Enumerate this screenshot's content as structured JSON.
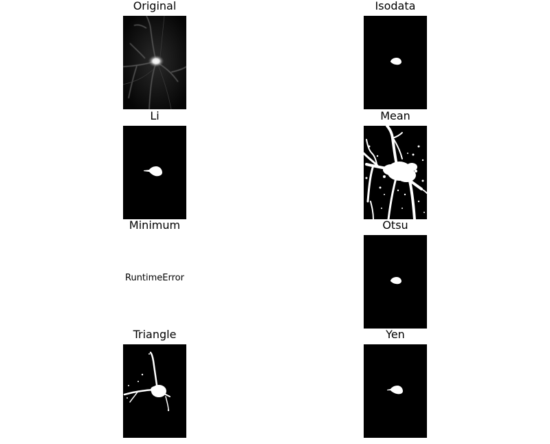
{
  "panels": {
    "original": {
      "title": "Original"
    },
    "isodata": {
      "title": "Isodata"
    },
    "li": {
      "title": "Li"
    },
    "mean": {
      "title": "Mean"
    },
    "minimum": {
      "title": "Minimum",
      "error": "RuntimeError"
    },
    "otsu": {
      "title": "Otsu"
    },
    "triangle": {
      "title": "Triangle"
    },
    "yen": {
      "title": "Yen"
    }
  },
  "colors": {
    "background": "#000000",
    "foreground": "#ffffff"
  }
}
